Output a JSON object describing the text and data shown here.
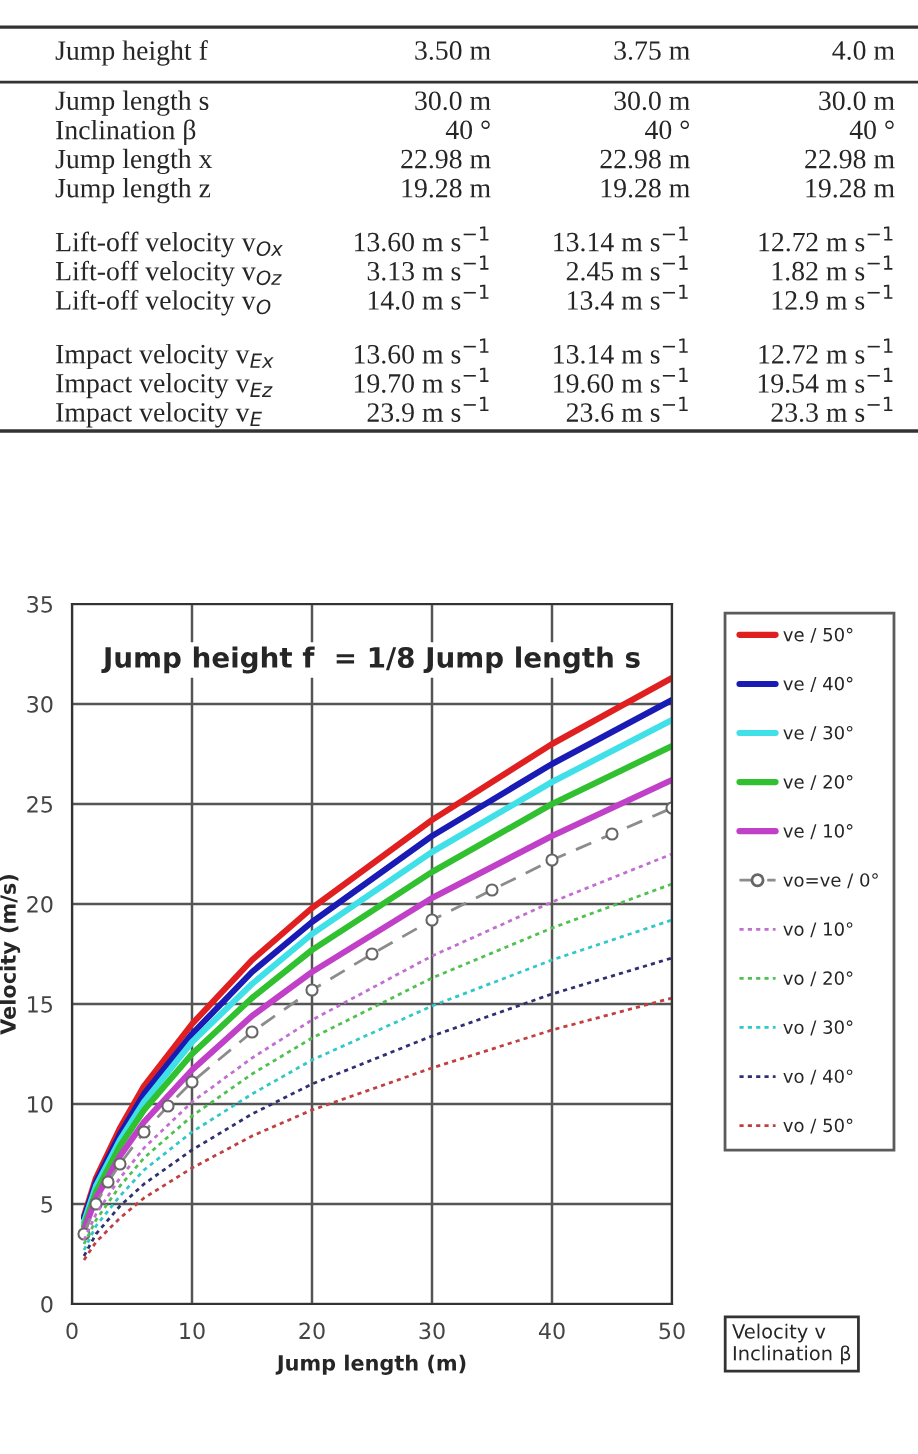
{
  "chart_data": [
    {
      "type": "other",
      "annotations": [
        "Jump height f",
        "3.50 m",
        "3.75 m",
        "4.0 m",
        "Jump length s",
        "30.0 m",
        "30.0 m",
        "30.0 m",
        "Inclination β",
        "40 °",
        "40 °",
        "40 °",
        "Jump length x",
        "22.98 m",
        "22.98 m",
        "22.98 m",
        "Jump length z",
        "19.28 m",
        "19.28 m",
        "19.28 m",
        "Lift-off velocity v$_{Ox}$",
        "13.60 m s$^{−1}$",
        "13.14 m s$^{−1}$",
        "12.72 m s$^{−1}$",
        "Lift-off velocity v$_{Oz}$",
        "3.13 m s$^{−1}$",
        "2.45 m s$^{−1}$",
        "1.82 m s$^{−1}$",
        "Lift-off velocity v$_{O}$",
        "14.0 m s$^{−1}$",
        "13.4 m s$^{−1}$",
        "12.9 m s$^{−1}$",
        "Impact velocity v$_{Ex}$",
        "13.60 m s$^{−1}$",
        "13.14 m s$^{−1}$",
        "12.72 m s$^{−1}$",
        "Impact velocity v$_{Ez}$",
        "19.70 m s$^{−1}$",
        "19.60 m s$^{−1}$",
        "19.54 m s$^{−1}$",
        "Impact velocity v$_{E}$",
        "23.9 m s$^{−1}$",
        "23.6 m s$^{−1}$",
        "23.3 m s$^{−1}$"
      ]
    },
    {
      "type": "line",
      "title": "Jump height f  = 1/8 Jump length s",
      "xlabel": "Jump length (m)",
      "ylabel": "Velocity (m/s)",
      "x": [
        1,
        2,
        4,
        6,
        10,
        15,
        20,
        30,
        40,
        50
      ],
      "xlim": [
        0,
        50
      ],
      "xticks": [
        0,
        10,
        20,
        30,
        40,
        50
      ],
      "ylim": [
        0,
        35
      ],
      "yticks": [
        0,
        5,
        10,
        15,
        20,
        25,
        30,
        35
      ],
      "grid": true,
      "legend": "right",
      "annotations": [
        "Velocity v\nInclination β"
      ],
      "series": [
        {
          "name": "ve / 50°",
          "color": "#e02020",
          "line_style": "solid",
          "values": [
            4.4,
            6.3,
            8.8,
            10.9,
            14.0,
            17.2,
            19.8,
            24.2,
            28.0,
            31.3
          ]
        },
        {
          "name": "ve / 40°",
          "color": "#1a1ab4",
          "line_style": "solid",
          "values": [
            4.3,
            6.1,
            8.5,
            10.5,
            13.5,
            16.6,
            19.1,
            23.4,
            27.0,
            30.2
          ]
        },
        {
          "name": "ve / 30°",
          "color": "#40e0e8",
          "line_style": "solid",
          "values": [
            4.1,
            5.9,
            8.2,
            10.1,
            13.1,
            16.0,
            18.5,
            22.6,
            26.1,
            29.2
          ]
        },
        {
          "name": "ve / 20°",
          "color": "#30c030",
          "line_style": "solid",
          "values": [
            3.9,
            5.6,
            7.9,
            9.7,
            12.5,
            15.3,
            17.7,
            21.6,
            25.0,
            27.9
          ]
        },
        {
          "name": "ve / 10°",
          "color": "#c040c8",
          "line_style": "solid",
          "values": [
            3.7,
            5.3,
            7.4,
            9.1,
            11.7,
            14.4,
            16.6,
            20.3,
            23.4,
            26.2
          ]
        },
        {
          "name": "vo=ve / 0°",
          "color": "#8c8c8c",
          "line_style": "dashed",
          "marker": "circle",
          "x": [
            1,
            2,
            3,
            4,
            6,
            8,
            10,
            15,
            20,
            25,
            30,
            35,
            40,
            45,
            50
          ],
          "values": [
            3.5,
            5.0,
            6.1,
            7.0,
            8.6,
            9.9,
            11.1,
            13.6,
            15.7,
            17.5,
            19.2,
            20.7,
            22.2,
            23.5,
            24.8
          ]
        },
        {
          "name": "vo / 10°",
          "color": "#c070d0",
          "line_style": "dotted",
          "values": [
            3.2,
            4.5,
            6.3,
            7.8,
            10.1,
            12.3,
            14.2,
            17.4,
            20.1,
            22.5
          ]
        },
        {
          "name": "vo / 20°",
          "color": "#50c050",
          "line_style": "dotted",
          "values": [
            3.0,
            4.2,
            5.9,
            7.3,
            9.4,
            11.5,
            13.3,
            16.3,
            18.8,
            21.0
          ]
        },
        {
          "name": "vo / 30°",
          "color": "#30c8c8",
          "line_style": "dotted",
          "values": [
            2.7,
            3.9,
            5.4,
            6.7,
            8.6,
            10.5,
            12.2,
            14.9,
            17.2,
            19.2
          ]
        },
        {
          "name": "vo / 40°",
          "color": "#303070",
          "line_style": "dotted",
          "values": [
            2.4,
            3.5,
            4.9,
            6.0,
            7.7,
            9.5,
            11.0,
            13.4,
            15.5,
            17.3
          ]
        },
        {
          "name": "vo / 50°",
          "color": "#c04040",
          "line_style": "dotted",
          "values": [
            2.2,
            3.1,
            4.3,
            5.3,
            6.8,
            8.4,
            9.7,
            11.8,
            13.7,
            15.3
          ]
        }
      ]
    }
  ]
}
